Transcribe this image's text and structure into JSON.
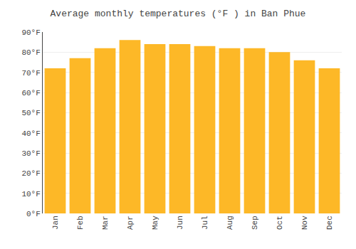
{
  "chart_data": {
    "type": "bar",
    "title": "Average monthly temperatures (°F ) in Ban Phue",
    "categories": [
      "Jan",
      "Feb",
      "Mar",
      "Apr",
      "May",
      "Jun",
      "Jul",
      "Aug",
      "Sep",
      "Oct",
      "Nov",
      "Dec"
    ],
    "values": [
      72,
      77,
      82,
      86,
      84,
      84,
      83,
      82,
      82,
      80,
      76,
      72
    ],
    "color": "#FDB827",
    "ylim": [
      0,
      90
    ],
    "yticks": [
      {
        "value": 0,
        "label": "0°F"
      },
      {
        "value": 10,
        "label": "10°F"
      },
      {
        "value": 20,
        "label": "20°F"
      },
      {
        "value": 30,
        "label": "30°F"
      },
      {
        "value": 40,
        "label": "40°F"
      },
      {
        "value": 50,
        "label": "50°F"
      },
      {
        "value": 60,
        "label": "60°F"
      },
      {
        "value": 70,
        "label": "70°F"
      },
      {
        "value": 80,
        "label": "80°F"
      },
      {
        "value": 90,
        "label": "90°F"
      }
    ],
    "grid": true
  }
}
